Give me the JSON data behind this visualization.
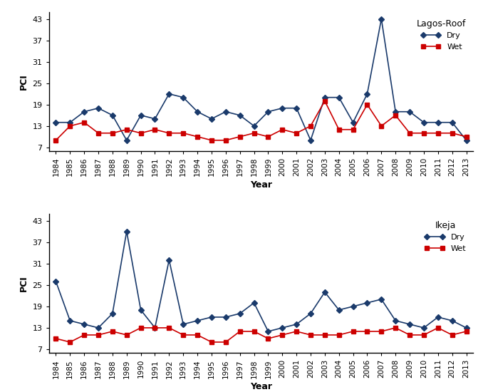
{
  "years": [
    1984,
    1985,
    1986,
    1987,
    1988,
    1989,
    1990,
    1991,
    1992,
    1993,
    1994,
    1995,
    1996,
    1997,
    1998,
    1999,
    2000,
    2001,
    2002,
    2003,
    2004,
    2005,
    2006,
    2007,
    2008,
    2009,
    2010,
    2011,
    2012,
    2013
  ],
  "lagos_dry": [
    14,
    14,
    17,
    18,
    16,
    9,
    16,
    15,
    22,
    21,
    17,
    15,
    17,
    16,
    13,
    17,
    18,
    18,
    9,
    21,
    21,
    14,
    22,
    43,
    17,
    17,
    14,
    14,
    14,
    9
  ],
  "lagos_wet": [
    9,
    13,
    14,
    11,
    11,
    12,
    11,
    12,
    11,
    11,
    10,
    9,
    9,
    10,
    11,
    10,
    12,
    11,
    13,
    20,
    12,
    12,
    19,
    13,
    16,
    11,
    11,
    11,
    11,
    10
  ],
  "ikeja_dry": [
    26,
    15,
    14,
    13,
    17,
    40,
    18,
    13,
    32,
    14,
    15,
    16,
    16,
    17,
    20,
    12,
    13,
    14,
    17,
    23,
    18,
    19,
    20,
    21,
    15,
    14,
    13,
    16,
    15,
    13
  ],
  "ikeja_wet": [
    10,
    9,
    11,
    11,
    12,
    11,
    13,
    13,
    13,
    11,
    11,
    9,
    9,
    12,
    12,
    10,
    11,
    12,
    11,
    11,
    11,
    12,
    12,
    12,
    13,
    11,
    11,
    13,
    11,
    12
  ],
  "title1": "Lagos-Roof",
  "title2": "Ikeja",
  "ylabel": "PCI",
  "xlabel": "Year",
  "dry_color": "#1a3a6b",
  "wet_color": "#cc0000",
  "yticks": [
    7,
    13,
    19,
    25,
    31,
    37,
    43
  ],
  "legend_dry": "Dry",
  "legend_wet": "Wet"
}
